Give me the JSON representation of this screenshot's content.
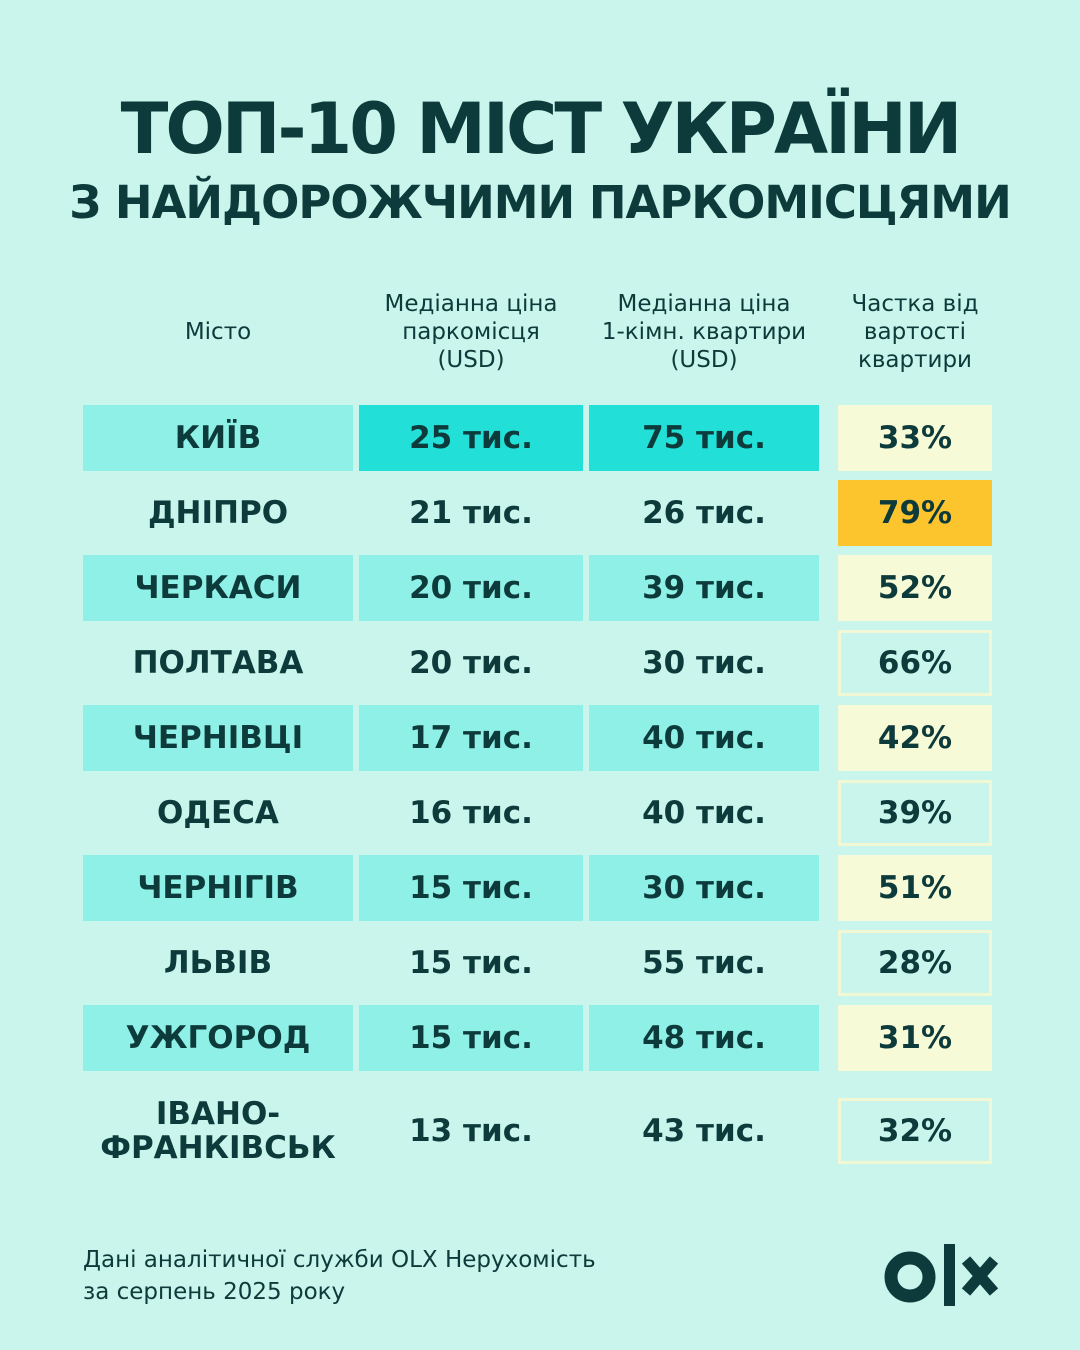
{
  "header": {
    "title": "ТОП-10 МІСТ УКРАЇНИ",
    "subtitle": "З НАЙДОРОЖЧИМИ ПАРКОМІСЦЯМИ"
  },
  "table": {
    "columns": [
      "Місто",
      [
        "Медіанна ціна",
        "паркомісця",
        "(USD)"
      ],
      [
        "Медіанна ціна",
        "1-кімн. квартири",
        "(USD)"
      ],
      [
        "Частка від",
        "вартості",
        "квартири"
      ]
    ],
    "rows": [
      [
        "КИЇВ",
        "25 тис.",
        "75 тис.",
        "33%"
      ],
      [
        "ДНІПРО",
        "21 тис.",
        "26 тис.",
        "79%"
      ],
      [
        "ЧЕРКАСИ",
        "20 тис.",
        "39 тис.",
        "52%"
      ],
      [
        "ПОЛТАВА",
        "20 тис.",
        "30 тис.",
        "66%"
      ],
      [
        "ЧЕРНІВЦІ",
        "17 тис.",
        "40 тис.",
        "42%"
      ],
      [
        "ОДЕСА",
        "16 тис.",
        "40 тис.",
        "39%"
      ],
      [
        "ЧЕРНІГІВ",
        "15 тис.",
        "30 тис.",
        "51%"
      ],
      [
        "ЛЬВІВ",
        "15 тис.",
        "55 тис.",
        "28%"
      ],
      [
        "УЖГОРОД",
        "15 тис.",
        "48 тис.",
        "31%"
      ],
      [
        "ІВАНО-ФРАНКІВСЬК",
        "13 тис.",
        "43 тис.",
        "32%"
      ]
    ]
  },
  "footer": {
    "source": [
      "Дані аналітичної служби OLX Нерухомість",
      "за серпень 2025 року"
    ]
  }
}
